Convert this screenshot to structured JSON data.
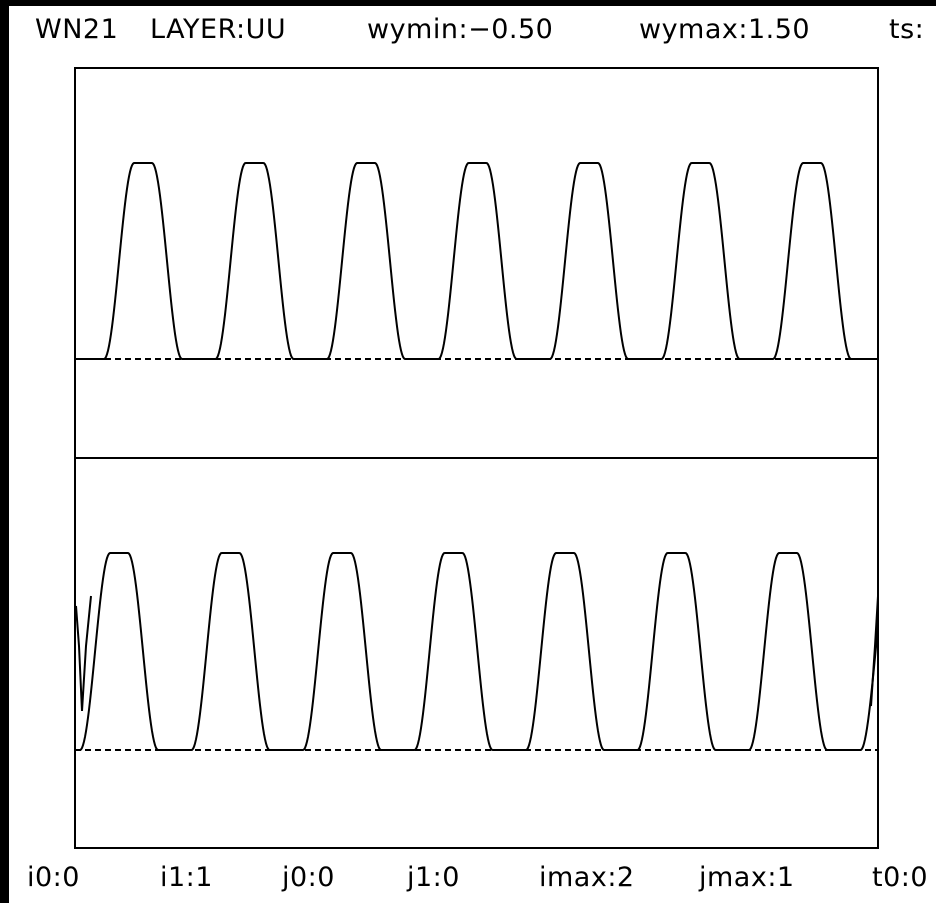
{
  "header": {
    "window": "WN21",
    "layer": "LAYER:UU",
    "wymin": "wymin:−0.50",
    "wymax": "wymax:1.50",
    "ts": "ts:"
  },
  "footer": {
    "i0": "i0:0",
    "i1": "i1:1",
    "j0": "j0:0",
    "j1": "j1:0",
    "imax": "imax:2",
    "jmax": "jmax:1",
    "t0": "t0:0"
  },
  "chart_data": {
    "type": "line",
    "title": "",
    "xlabel": "",
    "ylabel": "",
    "ylim": [
      -0.5,
      1.5
    ],
    "grid": false,
    "panels": [
      {
        "name": "upper",
        "baseline": 0,
        "periods": 7,
        "ymax": 1.0,
        "ymin": 0.0,
        "dashed_baseline": true
      },
      {
        "name": "lower",
        "baseline": 0,
        "periods": 7,
        "ymax": 1.0,
        "ymin": 0.0,
        "dashed_baseline": true,
        "edge_spike": true
      }
    ],
    "line_color": "#000000"
  }
}
